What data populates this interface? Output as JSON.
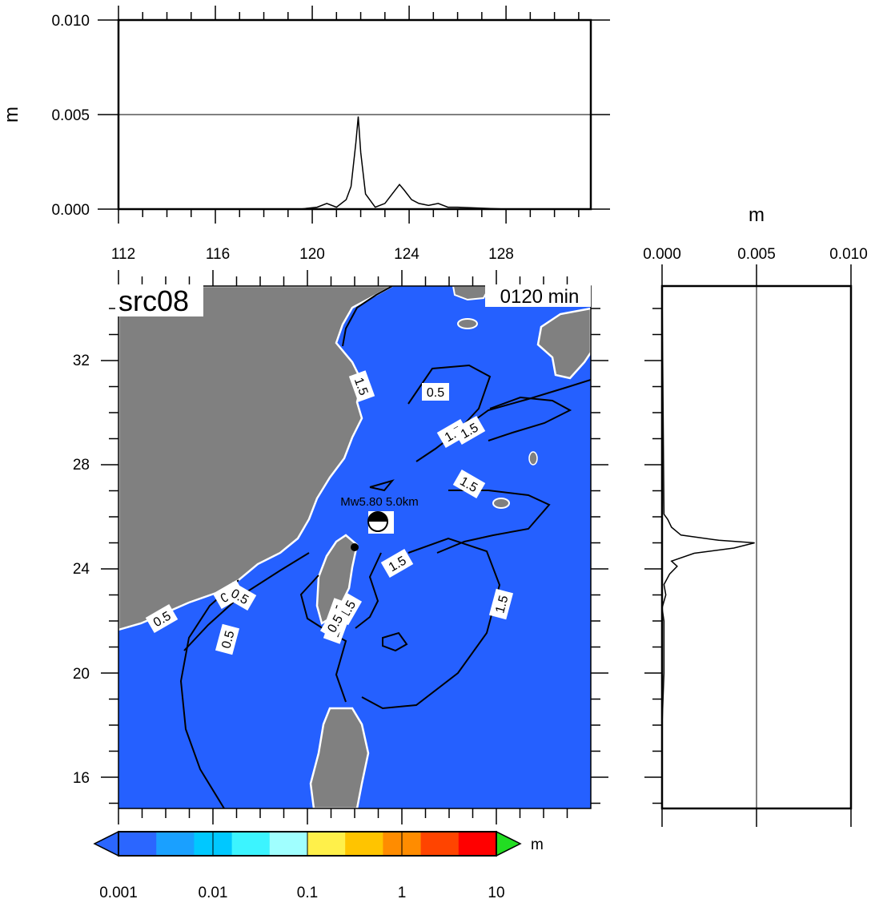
{
  "top_panel": {
    "ylabel": "m",
    "yticks": [
      "0.010",
      "0.005",
      "0.000"
    ],
    "xticks": [
      "112",
      "116",
      "120",
      "124",
      "128"
    ]
  },
  "right_panel": {
    "xlabel": "m",
    "xticks": [
      "0.000",
      "0.005",
      "0.010"
    ]
  },
  "map": {
    "title": "src08",
    "time": "0120 min",
    "lat_ticks": [
      "32",
      "28",
      "24",
      "20",
      "16"
    ],
    "event_label": "Mw5.80  5.0km",
    "contour_labels": [
      "1.5",
      "0.5",
      "1.5",
      "1.5",
      "1.5",
      "1.5",
      "1.5",
      "0.5",
      "0.5",
      "0.5",
      "0.5",
      "1.5",
      "1.5",
      "1.5",
      "0.5"
    ],
    "colors": {
      "sea": "#2560ff",
      "land": "#808080",
      "coast": "#ffffff",
      "contour": "#000000"
    }
  },
  "colorbar": {
    "ticks": [
      "0.001",
      "0.01",
      "0.1",
      "1",
      "10"
    ],
    "unit": "m",
    "colors": [
      "#2b66ff",
      "#1aa0ff",
      "#00c8ff",
      "#3cf4ff",
      "#a0ffff",
      "#fff04a",
      "#ffc400",
      "#ff8c00",
      "#ff4400",
      "#ff0000",
      "#22dd22"
    ]
  },
  "chart_data": [
    {
      "type": "line",
      "x": [
        112,
        119.5,
        120.2,
        120.6,
        121.0,
        121.4,
        121.6,
        121.8,
        121.9,
        122.0,
        122.2,
        122.6,
        123.0,
        123.3,
        123.6,
        123.8,
        124.1,
        124.4,
        124.8,
        125.2,
        125.6,
        126.0,
        128.0,
        130.3
      ],
      "y": [
        0,
        0,
        0.0001,
        0.0003,
        0.0001,
        0.0005,
        0.0012,
        0.0035,
        0.0049,
        0.003,
        0.0008,
        0.0001,
        0.0003,
        0.0008,
        0.0013,
        0.001,
        0.0005,
        0.0003,
        0.0002,
        0.0003,
        0.0001,
        0.0001,
        0,
        0
      ],
      "xlabel": "",
      "ylabel": "m",
      "xlim": [
        112,
        131.5
      ],
      "ylim": [
        0,
        0.01
      ]
    },
    {
      "type": "line",
      "y": [
        15,
        16,
        18,
        20,
        21,
        22,
        22.5,
        23,
        23.4,
        23.8,
        24.1,
        24.3,
        24.6,
        24.8,
        25.0,
        25.1,
        25.3,
        25.6,
        25.9,
        26.1,
        35
      ],
      "x": [
        0,
        0,
        0,
        0.0001,
        0.0001,
        0.0001,
        0,
        0.0002,
        0.0001,
        0.0004,
        0.0008,
        0.0005,
        0.0017,
        0.0038,
        0.0049,
        0.003,
        0.001,
        0.0005,
        0.0003,
        0.0001,
        0
      ],
      "xlabel": "m",
      "ylabel": "",
      "xlim": [
        0,
        0.01
      ],
      "ylim": [
        15,
        35
      ]
    }
  ]
}
